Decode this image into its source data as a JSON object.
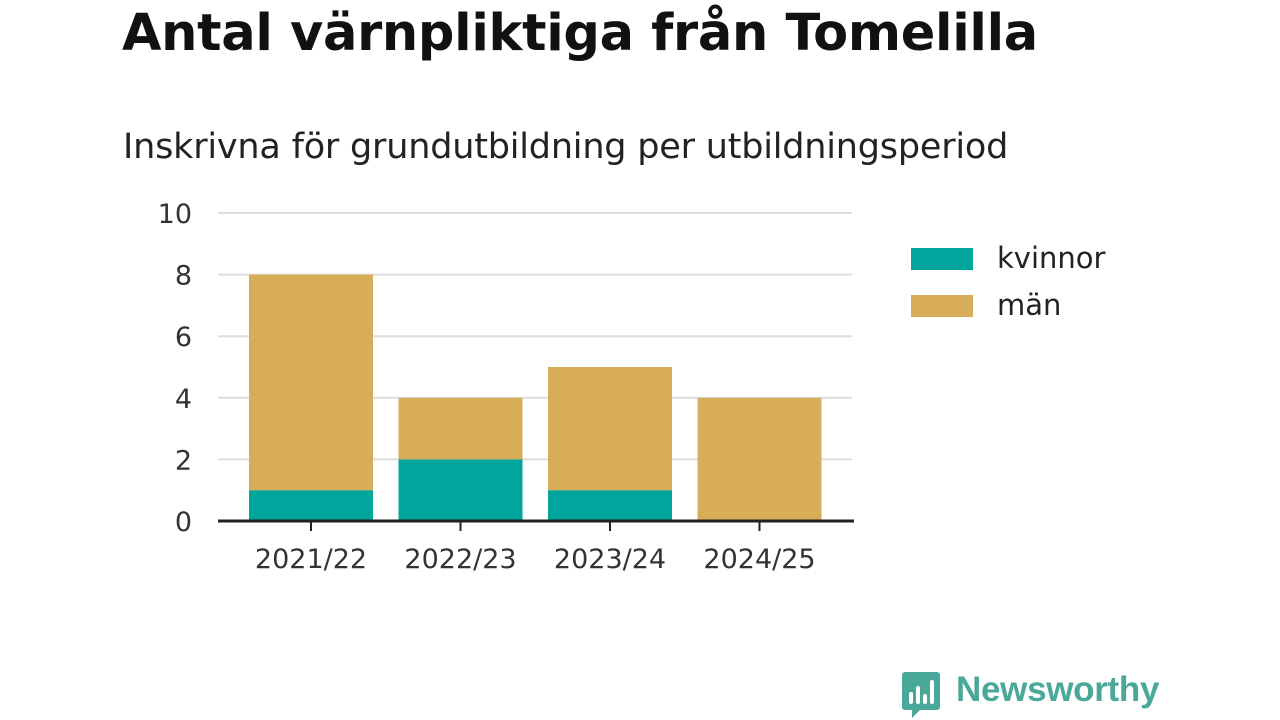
{
  "title": "Antal värnpliktiga från Tomelilla",
  "subtitle": "Inskrivna för grundutbildning per utbildningsperiod",
  "brand": {
    "name": "Newsworthy",
    "color": "#4aa89a"
  },
  "colors": {
    "kvinnor": "#00a59b",
    "man": "#d8ad5a",
    "grid": "#dddddd",
    "axis": "#222222"
  },
  "chart_data": {
    "type": "bar",
    "stacked": true,
    "categories": [
      "2021/22",
      "2022/23",
      "2023/24",
      "2024/25"
    ],
    "series": [
      {
        "name": "kvinnor",
        "values": [
          1,
          2,
          1,
          0
        ]
      },
      {
        "name": "män",
        "values": [
          7,
          2,
          4,
          4
        ]
      }
    ],
    "ylim": [
      0,
      10
    ],
    "yticks": [
      0,
      2,
      4,
      6,
      8,
      10
    ],
    "grid": true,
    "legend_position": "right"
  }
}
